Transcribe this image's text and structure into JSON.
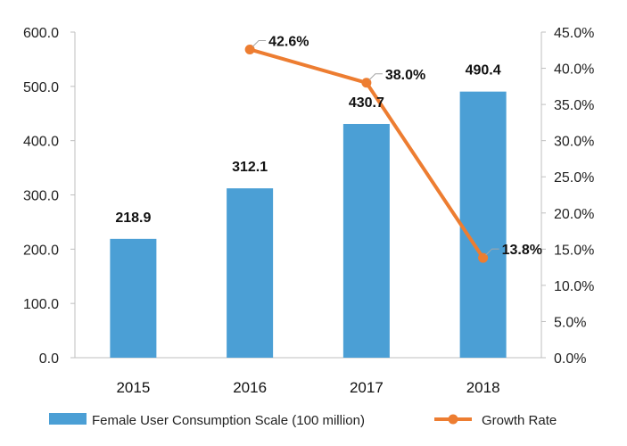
{
  "chart_data": {
    "type": "bar",
    "categories": [
      "2015",
      "2016",
      "2017",
      "2018"
    ],
    "series": [
      {
        "name": "Female User Consumption Scale (100 million)",
        "type": "bar",
        "axis": "left",
        "color": "#4b9fd5",
        "values": [
          218.9,
          312.1,
          430.7,
          490.4
        ],
        "labels": [
          "218.9",
          "312.1",
          "430.7",
          "490.4"
        ]
      },
      {
        "name": "Growth Rate",
        "type": "line",
        "axis": "right",
        "color": "#ed7d31",
        "values": [
          null,
          42.6,
          38.0,
          13.8
        ],
        "labels": [
          "",
          "42.6%",
          "38.0%",
          "13.8%"
        ]
      }
    ],
    "y_left": {
      "ylim": [
        0,
        600
      ],
      "ticks": [
        0,
        100,
        200,
        300,
        400,
        500,
        600
      ],
      "tick_labels": [
        "0.0",
        "100.0",
        "200.0",
        "300.0",
        "400.0",
        "500.0",
        "600.0"
      ]
    },
    "y_right": {
      "ylim": [
        0,
        45
      ],
      "ticks": [
        0,
        5,
        10,
        15,
        20,
        25,
        30,
        35,
        40,
        45
      ],
      "tick_labels": [
        "0.0%",
        "5.0%",
        "10.0%",
        "15.0%",
        "20.0%",
        "25.0%",
        "30.0%",
        "35.0%",
        "40.0%",
        "45.0%"
      ]
    },
    "grid": false,
    "legend_position": "bottom"
  }
}
